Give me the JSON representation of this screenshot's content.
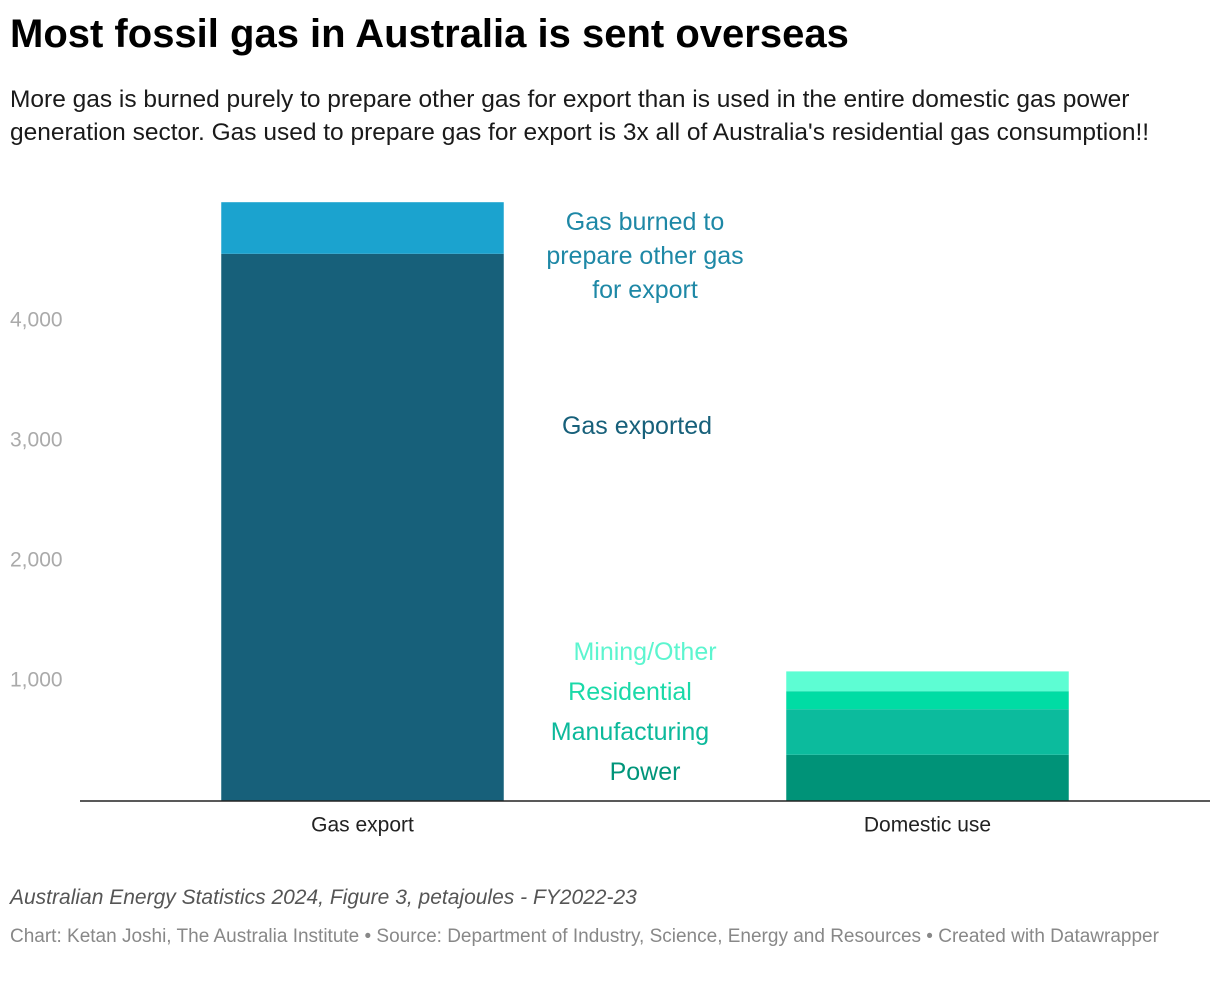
{
  "chart_data": {
    "type": "stacked-bar",
    "title": "Most fossil gas in Australia is sent overseas",
    "subtitle": "More gas is burned purely to prepare other gas for export than is used in the entire domestic gas power generation sector. Gas used to prepare gas for export is 3x all of Australia's residential gas consumption!!",
    "notes": "Australian Energy Statistics 2024, Figure 3, petajoules - FY2022-23",
    "credit": "Chart: Ketan Joshi, The Australia Institute • Source: Department of Industry, Science, Energy and Resources • Created with Datawrapper",
    "categories": [
      "Gas export",
      "Domestic use"
    ],
    "series": [
      {
        "name": "Gas exported",
        "color": "#17607a",
        "values": [
          4560,
          null
        ]
      },
      {
        "name": "Gas burned to prepare other gas for export",
        "color": "#1ba3cf",
        "values": [
          430,
          null
        ]
      },
      {
        "name": "Power",
        "color": "#009378",
        "values": [
          null,
          385
        ]
      },
      {
        "name": "Manufacturing",
        "color": "#0cbb9d",
        "values": [
          null,
          380
        ]
      },
      {
        "name": "Residential",
        "color": "#00dca4",
        "values": [
          null,
          150
        ]
      },
      {
        "name": "Mining/Other",
        "color": "#5dfdd3",
        "values": [
          null,
          165
        ]
      }
    ],
    "ylim": [
      0,
      5000
    ],
    "yticks": [
      {
        "value": 1000,
        "label": "1,000"
      },
      {
        "value": 2000,
        "label": "2,000"
      },
      {
        "value": 3000,
        "label": "3,000"
      },
      {
        "value": 4000,
        "label": "4,000"
      }
    ],
    "grid": false
  }
}
